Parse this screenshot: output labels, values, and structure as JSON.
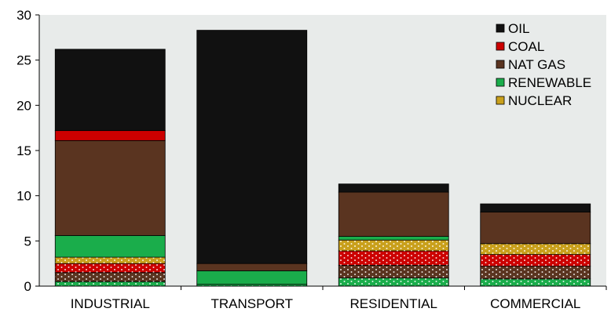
{
  "chart_data": {
    "type": "bar",
    "stacked": true,
    "categories": [
      "INDUSTRIAL",
      "TRANSPORT",
      "RESIDENTIAL",
      "COMMERCIAL"
    ],
    "ylim": [
      0,
      30
    ],
    "yticks": [
      0,
      5,
      10,
      15,
      20,
      25,
      30
    ],
    "grid": false,
    "legend_position": "top-right",
    "series": [
      {
        "name": "OIL",
        "color": "#111111",
        "pattern": "solid",
        "values": [
          9.0,
          25.8,
          0.9,
          0.9
        ],
        "draw_order": 4
      },
      {
        "name": "COAL",
        "color": "#cc0000",
        "pattern": "solid",
        "values": [
          1.1,
          0.0,
          0.0,
          0.0
        ],
        "draw_order": 3
      },
      {
        "name": "NAT GAS",
        "color": "#5a3420",
        "pattern": "solid",
        "values": [
          10.5,
          0.8,
          4.9,
          3.5
        ],
        "draw_order": 2
      },
      {
        "name": "RENEWABLE",
        "color": "#1aad4b",
        "pattern": "solid",
        "values": [
          2.4,
          1.5,
          0.4,
          0.0
        ],
        "draw_order": 1
      },
      {
        "name": "NUCLEAR",
        "color": "#c9a01c",
        "pattern": "solid",
        "values": [
          0.0,
          0.0,
          0.0,
          0.0
        ],
        "draw_order": 0
      }
    ],
    "dotted_segments": [
      {
        "name": "NUCLEAR",
        "color": "#c9a01c",
        "values": [
          0.7,
          0.0,
          1.2,
          1.2
        ]
      },
      {
        "name": "COAL",
        "color": "#cc0000",
        "values": [
          1.0,
          0.0,
          1.6,
          1.3
        ]
      },
      {
        "name": "NAT GAS",
        "color": "#5a3420",
        "values": [
          1.0,
          0.0,
          1.4,
          1.4
        ]
      },
      {
        "name": "RENEWABLE",
        "color": "#1aad4b",
        "values": [
          0.5,
          0.2,
          0.9,
          0.8
        ]
      }
    ]
  }
}
